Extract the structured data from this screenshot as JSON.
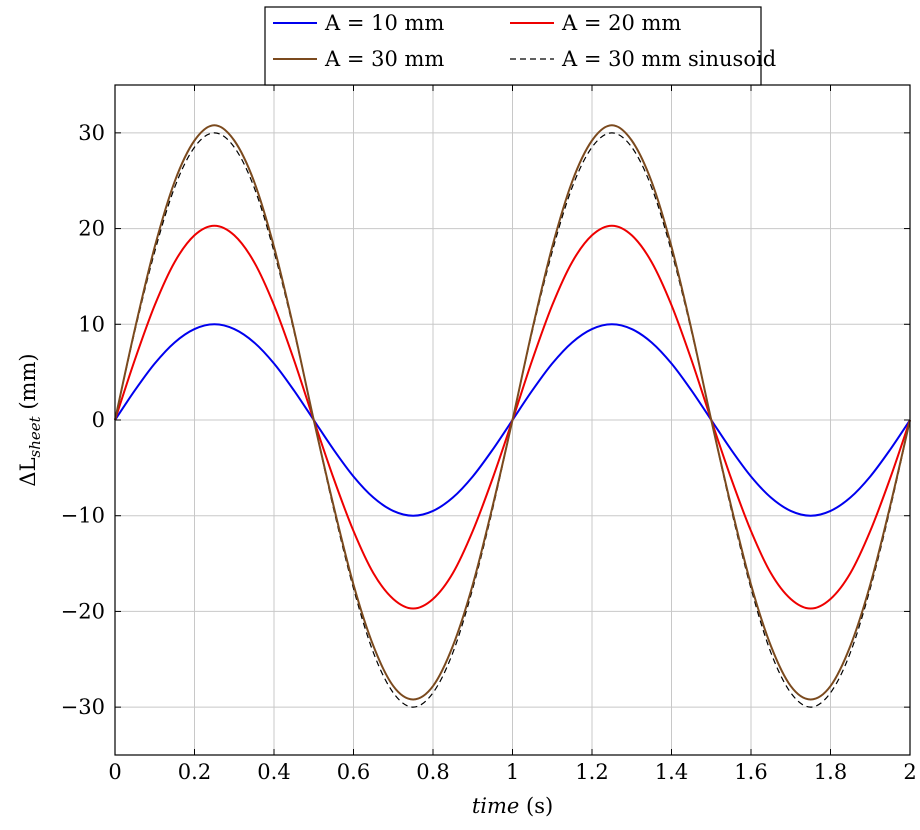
{
  "chart_data": {
    "type": "line",
    "xlabel": "time (s)",
    "xlabel_italic_part": "time",
    "xlabel_unit_part": " (s)",
    "ylabel": "ΔL_sheet (mm)",
    "ylabel_prefix": "ΔL",
    "ylabel_sub": "sheet",
    "ylabel_unit": " (mm)",
    "xlim": [
      0,
      2
    ],
    "ylim": [
      -35,
      35
    ],
    "xticks": [
      0,
      0.2,
      0.4,
      0.6,
      0.8,
      1,
      1.2,
      1.4,
      1.6,
      1.8,
      2
    ],
    "xtick_labels": [
      "0",
      "0.2",
      "0.4",
      "0.6",
      "0.8",
      "1",
      "1.2",
      "1.4",
      "1.6",
      "1.8",
      "2"
    ],
    "yticks": [
      30,
      20,
      10,
      0,
      -10,
      -20,
      -30
    ],
    "ytick_labels": [
      "30",
      "20",
      "10",
      "0",
      "−10",
      "−20",
      "−30"
    ],
    "grid": true,
    "legend_position": "top-center",
    "x": [
      0,
      0.05,
      0.1,
      0.15,
      0.2,
      0.25,
      0.3,
      0.35,
      0.4,
      0.45,
      0.5,
      0.55,
      0.6,
      0.65,
      0.7,
      0.75,
      0.8,
      0.85,
      0.9,
      0.95,
      1,
      1.05,
      1.1,
      1.15,
      1.2,
      1.25,
      1.3,
      1.35,
      1.4,
      1.45,
      1.5,
      1.55,
      1.6,
      1.65,
      1.7,
      1.75,
      1.8,
      1.85,
      1.9,
      1.95,
      2
    ],
    "series": [
      {
        "name": "A = 10 mm",
        "color": "#0000ee",
        "dash": "solid",
        "values": [
          0,
          3.1,
          5.9,
          8.1,
          9.5,
          10.0,
          9.5,
          8.1,
          5.9,
          3.1,
          0,
          -3.1,
          -5.9,
          -8.1,
          -9.5,
          -10.0,
          -9.5,
          -8.1,
          -5.9,
          -3.1,
          0,
          3.1,
          5.9,
          8.1,
          9.5,
          10.0,
          9.5,
          8.1,
          5.9,
          3.1,
          0,
          -3.1,
          -5.9,
          -8.1,
          -9.5,
          -10.0,
          -9.5,
          -8.1,
          -5.9,
          -3.1,
          0
        ]
      },
      {
        "name": "A = 20 mm",
        "color": "#ee0000",
        "dash": "solid",
        "values": [
          0,
          6.3,
          12.0,
          16.5,
          19.3,
          20.3,
          19.3,
          16.5,
          12.0,
          6.3,
          0,
          -6.1,
          -11.6,
          -16.0,
          -18.7,
          -19.7,
          -18.7,
          -16.0,
          -11.6,
          -6.1,
          0,
          6.3,
          12.0,
          16.5,
          19.3,
          20.3,
          19.3,
          16.5,
          12.0,
          6.3,
          0,
          -6.1,
          -11.6,
          -16.0,
          -18.7,
          -19.7,
          -18.7,
          -16.0,
          -11.6,
          -6.1,
          0
        ]
      },
      {
        "name": "A = 30 mm",
        "color": "#7b4a1e",
        "dash": "solid",
        "values": [
          0,
          9.5,
          18.1,
          24.9,
          29.2,
          30.8,
          29.2,
          24.9,
          18.1,
          9.5,
          0,
          -9.0,
          -17.2,
          -23.6,
          -27.8,
          -29.2,
          -27.8,
          -23.6,
          -17.2,
          -9.0,
          0,
          9.5,
          18.1,
          24.9,
          29.2,
          30.8,
          29.2,
          24.9,
          18.1,
          9.5,
          0,
          -9.0,
          -17.2,
          -23.6,
          -27.8,
          -29.2,
          -27.8,
          -23.6,
          -17.2,
          -9.0,
          0
        ]
      },
      {
        "name": "A = 30 mm sinusoid",
        "color": "#000000",
        "dash": "dashed",
        "values": [
          0,
          9.3,
          17.6,
          24.3,
          28.5,
          30.0,
          28.5,
          24.3,
          17.6,
          9.3,
          0,
          -9.3,
          -17.6,
          -24.3,
          -28.5,
          -30.0,
          -28.5,
          -24.3,
          -17.6,
          -9.3,
          0,
          9.3,
          17.6,
          24.3,
          28.5,
          30.0,
          28.5,
          24.3,
          17.6,
          9.3,
          0,
          -9.3,
          -17.6,
          -24.3,
          -28.5,
          -30.0,
          -28.5,
          -24.3,
          -17.6,
          -9.3,
          0
        ]
      }
    ]
  }
}
